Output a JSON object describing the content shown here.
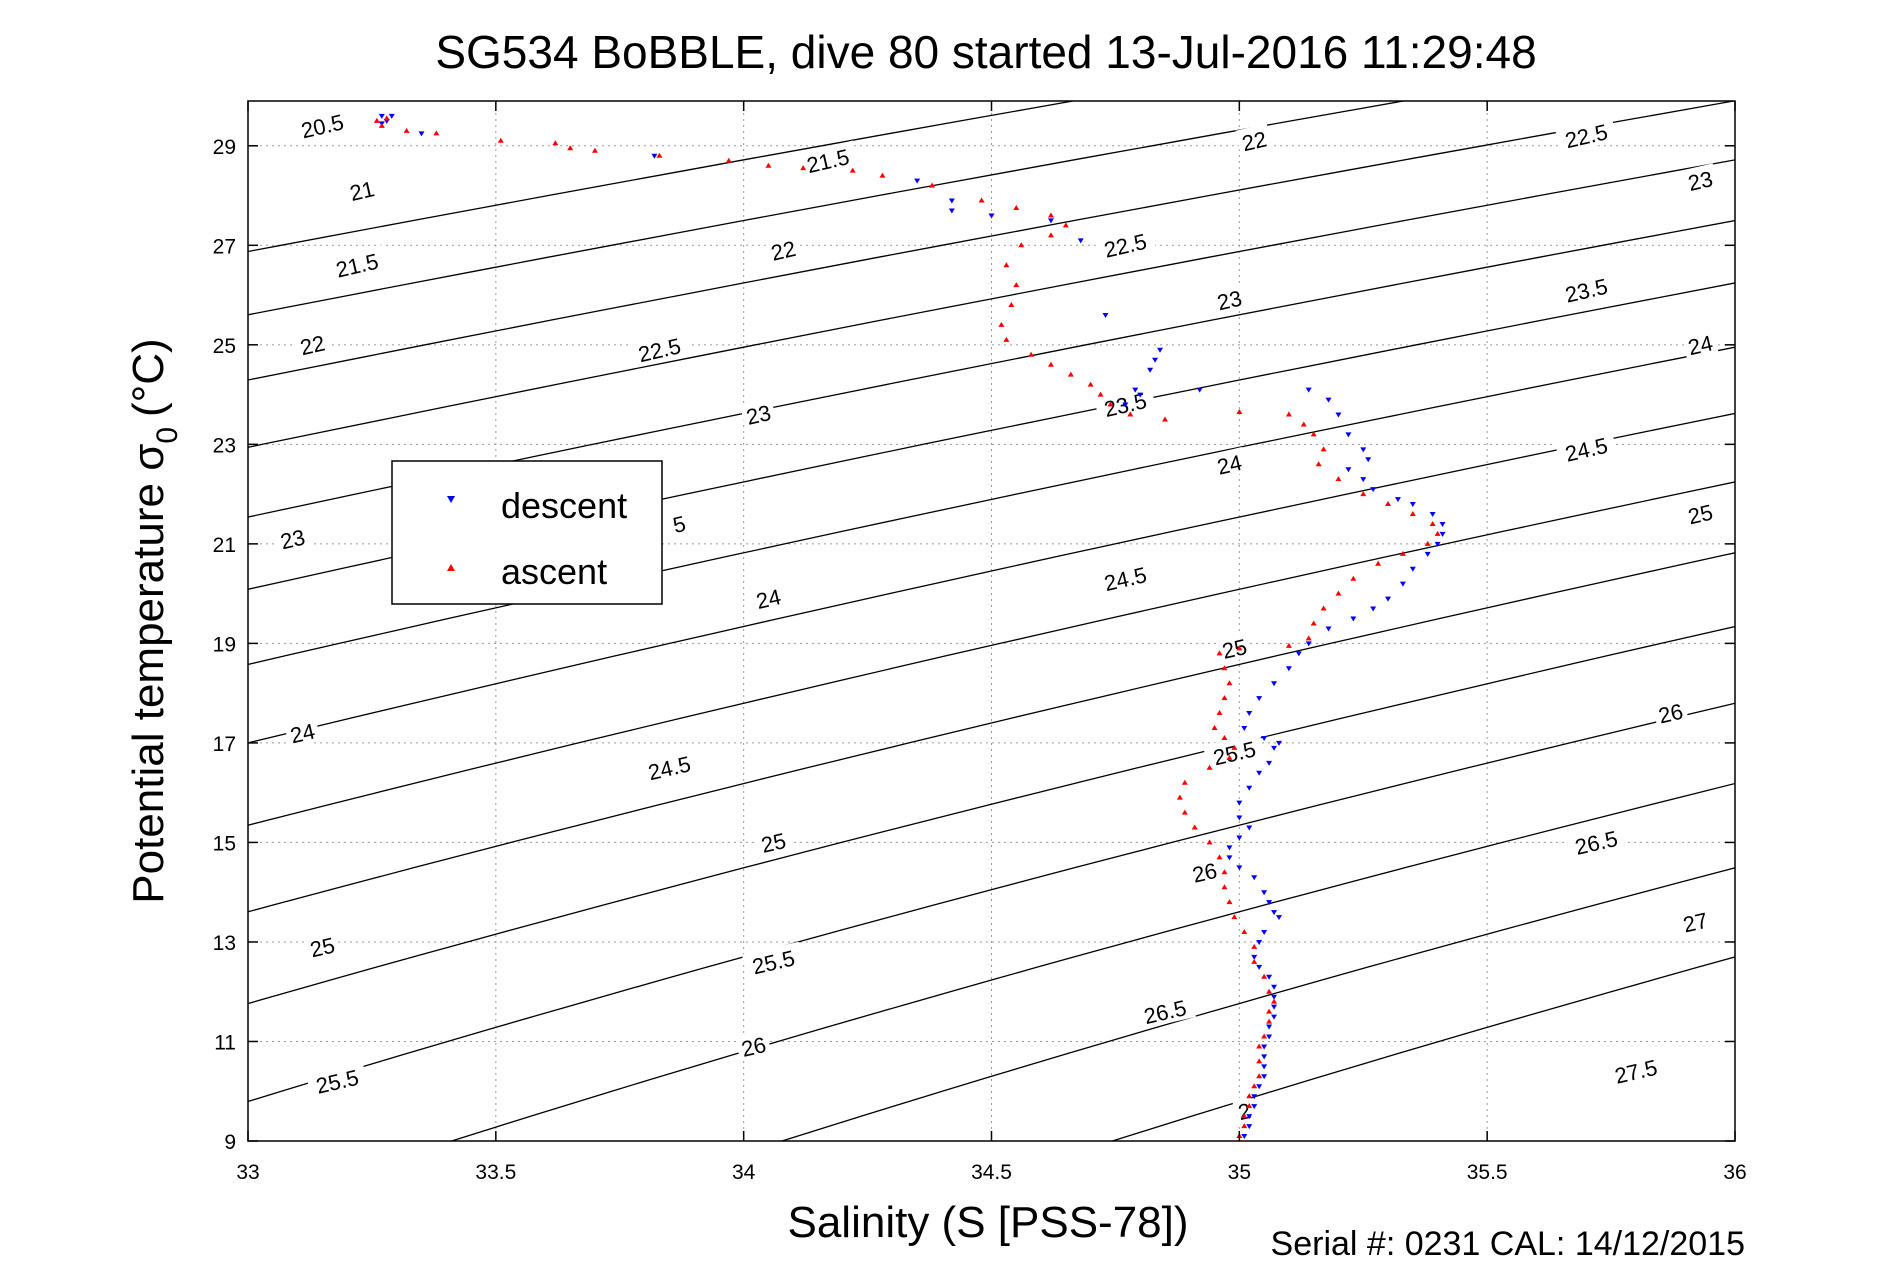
{
  "chart_data": {
    "type": "scatter",
    "title": "SG534 BoBBLE, dive 80 started 13-Jul-2016 11:29:48",
    "xlabel": "Salinity (S [PSS-78])",
    "ylabel_main": "Potential temperature σ",
    "ylabel_sub": "0",
    "ylabel_unit": "(°C)",
    "xlim": [
      33,
      36
    ],
    "ylim": [
      9,
      29.9
    ],
    "x_ticks": [
      33,
      33.5,
      34,
      34.5,
      35,
      35.5,
      36
    ],
    "x_tick_labels": [
      "33",
      "33.5",
      "34",
      "34.5",
      "35",
      "35.5",
      "36"
    ],
    "y_ticks": [
      9,
      11,
      13,
      15,
      17,
      19,
      21,
      23,
      25,
      27,
      29
    ],
    "y_tick_labels": [
      "9",
      "11",
      "13",
      "15",
      "17",
      "19",
      "21",
      "23",
      "25",
      "27",
      "29"
    ],
    "grid": true,
    "legend_position": "upper-left",
    "footer": "Serial #: 0231  CAL: 14/12/2015",
    "density_contours": {
      "levels": [
        20.5,
        21,
        21.5,
        22,
        22.5,
        23,
        23.5,
        24,
        24.5,
        25,
        25.5,
        26,
        26.5,
        27,
        27.5
      ],
      "labels": [
        {
          "text": "20.5",
          "s": 33.15,
          "t": 29.4
        },
        {
          "text": "21",
          "s": 33.23,
          "t": 28.1
        },
        {
          "text": "21.5",
          "s": 33.22,
          "t": 26.6
        },
        {
          "text": "22",
          "s": 33.13,
          "t": 25.0
        },
        {
          "text": "23",
          "s": 33.09,
          "t": 21.1
        },
        {
          "text": "24",
          "s": 33.11,
          "t": 17.2
        },
        {
          "text": "25",
          "s": 33.15,
          "t": 12.9
        },
        {
          "text": "25.5",
          "s": 33.18,
          "t": 10.2
        },
        {
          "text": "21.5",
          "s": 34.17,
          "t": 28.7
        },
        {
          "text": "22",
          "s": 34.08,
          "t": 26.9
        },
        {
          "text": "22.5",
          "s": 33.83,
          "t": 24.9
        },
        {
          "text": "23",
          "s": 34.03,
          "t": 23.6
        },
        {
          "text": "5",
          "s": 33.87,
          "t": 21.4
        },
        {
          "text": "24",
          "s": 34.05,
          "t": 19.9
        },
        {
          "text": "24.5",
          "s": 33.85,
          "t": 16.5
        },
        {
          "text": "25",
          "s": 34.06,
          "t": 15.0
        },
        {
          "text": "25.5",
          "s": 34.06,
          "t": 12.6
        },
        {
          "text": "26",
          "s": 34.02,
          "t": 10.9
        },
        {
          "text": "22",
          "s": 35.03,
          "t": 29.1
        },
        {
          "text": "22.5",
          "s": 34.77,
          "t": 27.0
        },
        {
          "text": "23",
          "s": 34.98,
          "t": 25.9
        },
        {
          "text": "23.5",
          "s": 34.77,
          "t": 23.8
        },
        {
          "text": "24",
          "s": 34.98,
          "t": 22.6
        },
        {
          "text": "24.5",
          "s": 34.77,
          "t": 20.3
        },
        {
          "text": "25",
          "s": 34.99,
          "t": 18.9
        },
        {
          "text": "25.5",
          "s": 34.99,
          "t": 16.8
        },
        {
          "text": "26",
          "s": 34.93,
          "t": 14.4
        },
        {
          "text": "26.5",
          "s": 34.85,
          "t": 11.6
        },
        {
          "text": "2",
          "s": 35.01,
          "t": 9.6
        },
        {
          "text": "22.5",
          "s": 35.7,
          "t": 29.2
        },
        {
          "text": "23",
          "s": 35.93,
          "t": 28.3
        },
        {
          "text": "23.5",
          "s": 35.7,
          "t": 26.1
        },
        {
          "text": "24",
          "s": 35.93,
          "t": 25.0
        },
        {
          "text": "24.5",
          "s": 35.7,
          "t": 22.9
        },
        {
          "text": "25",
          "s": 35.93,
          "t": 21.6
        },
        {
          "text": "26",
          "s": 35.87,
          "t": 17.6
        },
        {
          "text": "26.5",
          "s": 35.72,
          "t": 15.0
        },
        {
          "text": "27",
          "s": 35.92,
          "t": 13.4
        },
        {
          "text": "27.5",
          "s": 35.8,
          "t": 10.4
        }
      ]
    },
    "series": [
      {
        "name": "descent",
        "marker": "triangle-down",
        "color": "#0000ff",
        "points": [
          [
            33.27,
            29.6
          ],
          [
            33.29,
            29.6
          ],
          [
            33.28,
            29.5
          ],
          [
            33.27,
            29.45
          ],
          [
            33.35,
            29.25
          ],
          [
            33.82,
            28.8
          ],
          [
            34.35,
            28.3
          ],
          [
            34.42,
            27.9
          ],
          [
            34.42,
            27.7
          ],
          [
            34.5,
            27.6
          ],
          [
            34.62,
            27.5
          ],
          [
            34.68,
            27.1
          ],
          [
            34.73,
            25.6
          ],
          [
            34.84,
            24.9
          ],
          [
            34.83,
            24.7
          ],
          [
            34.82,
            24.5
          ],
          [
            34.79,
            24.1
          ],
          [
            34.8,
            24.0
          ],
          [
            34.77,
            23.8
          ],
          [
            34.92,
            24.1
          ],
          [
            35.14,
            24.1
          ],
          [
            35.18,
            23.9
          ],
          [
            35.2,
            23.6
          ],
          [
            35.22,
            23.2
          ],
          [
            35.25,
            22.9
          ],
          [
            35.26,
            22.7
          ],
          [
            35.22,
            22.5
          ],
          [
            35.25,
            22.3
          ],
          [
            35.27,
            22.1
          ],
          [
            35.32,
            21.9
          ],
          [
            35.35,
            21.8
          ],
          [
            35.39,
            21.6
          ],
          [
            35.41,
            21.4
          ],
          [
            35.41,
            21.2
          ],
          [
            35.4,
            21.0
          ],
          [
            35.38,
            20.8
          ],
          [
            35.35,
            20.5
          ],
          [
            35.33,
            20.2
          ],
          [
            35.3,
            19.9
          ],
          [
            35.27,
            19.7
          ],
          [
            35.23,
            19.5
          ],
          [
            35.18,
            19.3
          ],
          [
            35.14,
            19.0
          ],
          [
            35.12,
            18.8
          ],
          [
            35.1,
            18.5
          ],
          [
            35.07,
            18.2
          ],
          [
            35.04,
            17.9
          ],
          [
            35.02,
            17.6
          ],
          [
            35.01,
            17.3
          ],
          [
            35.05,
            17.1
          ],
          [
            35.08,
            17.0
          ],
          [
            35.07,
            16.9
          ],
          [
            35.06,
            16.6
          ],
          [
            35.04,
            16.4
          ],
          [
            35.02,
            16.1
          ],
          [
            35.0,
            15.8
          ],
          [
            35.0,
            15.5
          ],
          [
            35.02,
            15.3
          ],
          [
            35.0,
            15.1
          ],
          [
            34.98,
            14.9
          ],
          [
            34.98,
            14.7
          ],
          [
            35.0,
            14.5
          ],
          [
            35.03,
            14.3
          ],
          [
            35.05,
            14.0
          ],
          [
            35.06,
            13.8
          ],
          [
            35.07,
            13.6
          ],
          [
            35.08,
            13.5
          ],
          [
            35.05,
            13.2
          ],
          [
            35.04,
            13.0
          ],
          [
            35.03,
            12.7
          ],
          [
            35.04,
            12.5
          ],
          [
            35.06,
            12.3
          ],
          [
            35.07,
            12.1
          ],
          [
            35.07,
            11.9
          ],
          [
            35.07,
            11.7
          ],
          [
            35.07,
            11.5
          ],
          [
            35.06,
            11.3
          ],
          [
            35.06,
            11.1
          ],
          [
            35.05,
            10.9
          ],
          [
            35.05,
            10.7
          ],
          [
            35.05,
            10.5
          ],
          [
            35.05,
            10.3
          ],
          [
            35.04,
            10.1
          ],
          [
            35.03,
            9.9
          ],
          [
            35.03,
            9.7
          ],
          [
            35.02,
            9.5
          ],
          [
            35.02,
            9.3
          ],
          [
            35.01,
            9.1
          ]
        ]
      },
      {
        "name": "ascent",
        "marker": "triangle-up",
        "color": "#ff0000",
        "points": [
          [
            33.26,
            29.5
          ],
          [
            33.28,
            29.55
          ],
          [
            33.27,
            29.4
          ],
          [
            33.32,
            29.3
          ],
          [
            33.38,
            29.25
          ],
          [
            33.51,
            29.1
          ],
          [
            33.62,
            29.05
          ],
          [
            33.65,
            28.95
          ],
          [
            33.7,
            28.9
          ],
          [
            33.83,
            28.8
          ],
          [
            33.97,
            28.7
          ],
          [
            34.05,
            28.6
          ],
          [
            34.12,
            28.55
          ],
          [
            34.22,
            28.5
          ],
          [
            34.28,
            28.4
          ],
          [
            34.38,
            28.2
          ],
          [
            34.48,
            27.9
          ],
          [
            34.55,
            27.75
          ],
          [
            34.62,
            27.6
          ],
          [
            34.65,
            27.4
          ],
          [
            34.62,
            27.2
          ],
          [
            34.56,
            27.0
          ],
          [
            34.53,
            26.6
          ],
          [
            34.55,
            26.2
          ],
          [
            34.54,
            25.8
          ],
          [
            34.52,
            25.4
          ],
          [
            34.53,
            25.1
          ],
          [
            34.58,
            24.8
          ],
          [
            34.62,
            24.6
          ],
          [
            34.66,
            24.4
          ],
          [
            34.7,
            24.2
          ],
          [
            34.72,
            24.0
          ],
          [
            34.74,
            23.8
          ],
          [
            34.78,
            23.6
          ],
          [
            34.85,
            23.5
          ],
          [
            35.0,
            23.65
          ],
          [
            35.1,
            23.6
          ],
          [
            35.13,
            23.4
          ],
          [
            35.15,
            23.2
          ],
          [
            35.17,
            22.9
          ],
          [
            35.16,
            22.6
          ],
          [
            35.2,
            22.3
          ],
          [
            35.25,
            22.0
          ],
          [
            35.3,
            21.8
          ],
          [
            35.35,
            21.6
          ],
          [
            35.39,
            21.4
          ],
          [
            35.4,
            21.2
          ],
          [
            35.38,
            21.0
          ],
          [
            35.33,
            20.8
          ],
          [
            35.28,
            20.6
          ],
          [
            35.23,
            20.3
          ],
          [
            35.2,
            20.0
          ],
          [
            35.17,
            19.7
          ],
          [
            35.15,
            19.4
          ],
          [
            35.14,
            19.1
          ],
          [
            35.1,
            18.95
          ],
          [
            35.0,
            18.9
          ],
          [
            34.96,
            18.8
          ],
          [
            34.97,
            18.5
          ],
          [
            34.98,
            18.2
          ],
          [
            34.97,
            17.9
          ],
          [
            34.96,
            17.6
          ],
          [
            34.95,
            17.3
          ],
          [
            34.97,
            17.1
          ],
          [
            34.99,
            16.9
          ],
          [
            34.98,
            16.7
          ],
          [
            34.94,
            16.5
          ],
          [
            34.89,
            16.2
          ],
          [
            34.88,
            15.9
          ],
          [
            34.89,
            15.6
          ],
          [
            34.91,
            15.3
          ],
          [
            34.94,
            15.0
          ],
          [
            34.96,
            14.7
          ],
          [
            34.97,
            14.4
          ],
          [
            34.97,
            14.1
          ],
          [
            34.98,
            13.8
          ],
          [
            34.99,
            13.5
          ],
          [
            35.01,
            13.2
          ],
          [
            35.03,
            12.9
          ],
          [
            35.03,
            12.6
          ],
          [
            35.05,
            12.3
          ],
          [
            35.06,
            12.0
          ],
          [
            35.07,
            11.8
          ],
          [
            35.06,
            11.6
          ],
          [
            35.06,
            11.4
          ],
          [
            35.05,
            11.1
          ],
          [
            35.04,
            10.9
          ],
          [
            35.04,
            10.6
          ],
          [
            35.04,
            10.3
          ],
          [
            35.03,
            10.1
          ],
          [
            35.02,
            9.9
          ],
          [
            35.02,
            9.7
          ],
          [
            35.01,
            9.5
          ],
          [
            35.01,
            9.3
          ],
          [
            35.0,
            9.1
          ]
        ]
      }
    ]
  }
}
